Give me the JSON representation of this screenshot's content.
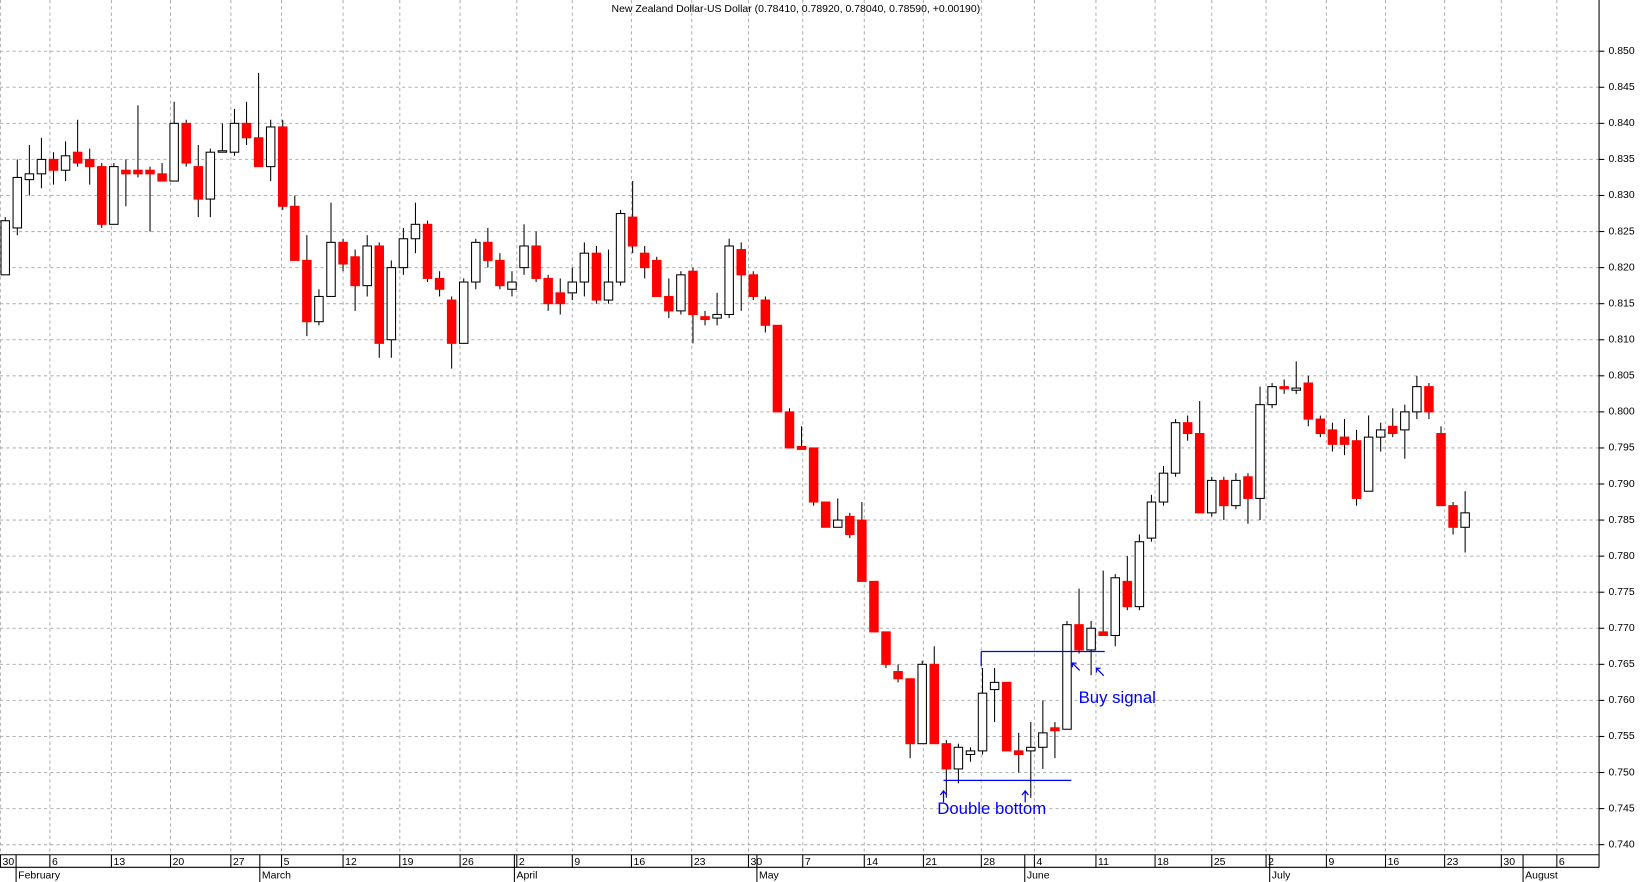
{
  "chart_data": {
    "type": "candlestick",
    "title": "New Zealand Dollar-US Dollar (0.78410, 0.78920, 0.78040, 0.78590, +0.00190)",
    "up_color": "#ffffff",
    "down_color": "#ff0000",
    "grid": true,
    "categories": [
      null,
      null,
      null,
      null,
      null,
      null,
      null,
      null,
      null,
      null,
      null,
      null,
      null,
      null,
      null,
      null,
      null,
      null,
      null,
      null,
      null,
      null,
      null,
      null,
      null,
      null,
      null,
      null,
      null,
      null,
      null,
      null,
      null,
      null,
      null,
      null,
      null,
      null,
      null,
      null,
      null,
      null,
      null,
      null,
      null,
      null,
      null,
      null,
      null,
      null,
      null,
      null,
      null,
      null,
      null,
      null,
      null,
      null,
      null,
      null,
      null,
      null,
      null,
      null,
      null,
      null,
      null,
      null,
      null,
      null,
      null,
      null,
      null,
      null,
      null,
      null,
      null,
      null,
      null,
      null,
      null,
      null,
      null,
      null,
      null,
      null,
      null,
      null,
      null,
      null,
      null,
      null,
      null,
      null,
      null,
      null,
      null,
      null,
      null,
      null,
      null,
      null,
      null,
      null,
      null,
      null,
      null,
      null,
      null,
      null,
      null,
      null,
      null,
      null,
      null,
      null,
      null,
      null,
      null,
      null,
      null,
      null
    ],
    "open": [
      0.819,
      0.8255,
      0.8322,
      0.833,
      0.835,
      0.8335,
      0.836,
      0.835,
      0.834,
      0.826,
      0.8335,
      0.8335,
      0.8335,
      0.833,
      0.832,
      0.84,
      0.834,
      0.8295,
      0.836,
      0.836,
      0.84,
      0.838,
      0.834,
      0.8395,
      0.8285,
      0.821,
      0.8125,
      0.816,
      0.8235,
      0.8215,
      0.8175,
      0.823,
      0.81,
      0.82,
      0.824,
      0.826,
      0.8185,
      0.8155,
      0.8095,
      0.818,
      0.8235,
      0.821,
      0.817,
      0.82,
      0.823,
      0.8185,
      0.8165,
      0.8165,
      0.818,
      0.822,
      0.8155,
      0.818,
      0.827,
      0.822,
      0.821,
      0.816,
      0.814,
      0.8195,
      0.8132,
      0.813,
      0.8135,
      0.8225,
      0.819,
      0.8155,
      0.812,
      0.8,
      0.7952,
      0.795,
      0.7875,
      0.784,
      0.7855,
      0.785,
      0.7765,
      0.7695,
      0.764,
      0.763,
      0.754,
      0.765,
      0.754,
      0.7505,
      0.7525,
      0.753,
      0.7615,
      0.7625,
      0.753,
      0.753,
      0.7535,
      0.7562,
      0.756,
      0.7705,
      0.767,
      0.7695,
      0.769,
      0.7765,
      0.773,
      0.7825,
      0.7875,
      0.7915,
      0.7985,
      0.797,
      0.786,
      0.7905,
      0.787,
      0.791,
      0.788,
      0.801,
      0.8035,
      0.803,
      0.804,
      0.799,
      0.7975,
      0.7965,
      0.796,
      0.789,
      0.7965,
      0.798,
      0.7975,
      0.8,
      0.8035,
      0.797,
      0.787,
      0.784
    ],
    "high": [
      0.827,
      0.835,
      0.837,
      0.838,
      0.836,
      0.8375,
      0.8405,
      0.8365,
      0.8345,
      0.8345,
      0.835,
      0.8425,
      0.834,
      0.8345,
      0.843,
      0.8405,
      0.837,
      0.8365,
      0.84,
      0.842,
      0.843,
      0.847,
      0.8405,
      0.8405,
      0.83,
      0.8245,
      0.817,
      0.829,
      0.824,
      0.8225,
      0.8245,
      0.8235,
      0.821,
      0.8255,
      0.829,
      0.8265,
      0.8195,
      0.816,
      0.8185,
      0.824,
      0.8255,
      0.822,
      0.8195,
      0.826,
      0.825,
      0.819,
      0.8185,
      0.82,
      0.8235,
      0.823,
      0.8225,
      0.828,
      0.832,
      0.823,
      0.8215,
      0.8185,
      0.8195,
      0.82,
      0.814,
      0.8165,
      0.824,
      0.8235,
      0.8195,
      0.816,
      0.812,
      0.8005,
      0.798,
      0.795,
      0.7875,
      0.788,
      0.786,
      0.7875,
      0.7765,
      0.7695,
      0.765,
      0.763,
      0.7655,
      0.7675,
      0.7545,
      0.754,
      0.7535,
      0.7645,
      0.7645,
      0.7625,
      0.7555,
      0.757,
      0.76,
      0.757,
      0.771,
      0.7755,
      0.771,
      0.778,
      0.7775,
      0.78,
      0.783,
      0.7885,
      0.7925,
      0.799,
      0.7995,
      0.8015,
      0.791,
      0.791,
      0.7915,
      0.7915,
      0.8035,
      0.804,
      0.8045,
      0.807,
      0.805,
      0.7995,
      0.7985,
      0.799,
      0.7975,
      0.7995,
      0.7985,
      0.8005,
      0.801,
      0.805,
      0.804,
      0.798,
      0.7875,
      0.789
    ],
    "low": [
      0.819,
      0.8245,
      0.83,
      0.831,
      0.8315,
      0.832,
      0.834,
      0.8315,
      0.8255,
      0.826,
      0.8285,
      0.8325,
      0.825,
      0.832,
      0.832,
      0.834,
      0.827,
      0.827,
      0.836,
      0.8355,
      0.837,
      0.834,
      0.832,
      0.828,
      0.821,
      0.8105,
      0.812,
      0.816,
      0.8195,
      0.814,
      0.816,
      0.8075,
      0.8075,
      0.819,
      0.822,
      0.818,
      0.816,
      0.806,
      0.8095,
      0.817,
      0.82,
      0.817,
      0.816,
      0.819,
      0.818,
      0.814,
      0.8135,
      0.8155,
      0.816,
      0.815,
      0.815,
      0.8175,
      0.822,
      0.8185,
      0.816,
      0.813,
      0.8135,
      0.8095,
      0.812,
      0.812,
      0.813,
      0.814,
      0.8155,
      0.811,
      0.8,
      0.795,
      0.7948,
      0.787,
      0.784,
      0.784,
      0.7825,
      0.7765,
      0.7695,
      0.7645,
      0.7625,
      0.752,
      0.754,
      0.754,
      0.7465,
      0.7485,
      0.7515,
      0.7525,
      0.757,
      0.753,
      0.75,
      0.7465,
      0.7505,
      0.752,
      0.756,
      0.7665,
      0.7635,
      0.769,
      0.7675,
      0.7725,
      0.7725,
      0.782,
      0.787,
      0.791,
      0.796,
      0.786,
      0.7855,
      0.785,
      0.7865,
      0.7845,
      0.785,
      0.8005,
      0.8025,
      0.8025,
      0.798,
      0.7965,
      0.7945,
      0.794,
      0.787,
      0.789,
      0.7945,
      0.7965,
      0.7935,
      0.799,
      0.799,
      0.787,
      0.783,
      0.7805
    ],
    "close": [
      0.8265,
      0.8325,
      0.833,
      0.835,
      0.8335,
      0.8355,
      0.8345,
      0.834,
      0.826,
      0.834,
      0.833,
      0.833,
      0.833,
      0.832,
      0.84,
      0.8345,
      0.8295,
      0.836,
      0.8362,
      0.84,
      0.838,
      0.834,
      0.8395,
      0.8285,
      0.821,
      0.8125,
      0.816,
      0.8235,
      0.8205,
      0.8175,
      0.823,
      0.8095,
      0.82,
      0.824,
      0.826,
      0.8185,
      0.817,
      0.8095,
      0.818,
      0.8235,
      0.821,
      0.8175,
      0.818,
      0.823,
      0.8185,
      0.815,
      0.815,
      0.818,
      0.822,
      0.8155,
      0.818,
      0.8275,
      0.823,
      0.82,
      0.816,
      0.814,
      0.819,
      0.8135,
      0.8128,
      0.8135,
      0.823,
      0.819,
      0.816,
      0.812,
      0.8,
      0.795,
      0.7948,
      0.7875,
      0.784,
      0.785,
      0.783,
      0.7765,
      0.7695,
      0.765,
      0.763,
      0.754,
      0.765,
      0.754,
      0.7505,
      0.7535,
      0.753,
      0.761,
      0.7625,
      0.753,
      0.7525,
      0.7535,
      0.7555,
      0.7558,
      0.7705,
      0.767,
      0.77,
      0.769,
      0.777,
      0.773,
      0.782,
      0.7875,
      0.7915,
      0.7985,
      0.797,
      0.786,
      0.7905,
      0.787,
      0.7905,
      0.788,
      0.801,
      0.8035,
      0.8032,
      0.8033,
      0.799,
      0.797,
      0.7955,
      0.7955,
      0.788,
      0.7965,
      0.7975,
      0.797,
      0.8,
      0.8035,
      0.8,
      0.787,
      0.784,
      0.786
    ],
    "xlim": [
      -0.434,
      132.1
    ],
    "ylim": [
      0.7386,
      0.8571
    ],
    "yticks": [
      {
        "value": 0.74,
        "label": "0.740"
      },
      0.745,
      {
        "value": 0.75,
        "label": "0.750"
      },
      0.755,
      {
        "value": 0.76,
        "label": "0.760"
      },
      0.765,
      {
        "value": 0.77,
        "label": "0.770"
      },
      0.775,
      {
        "value": 0.78,
        "label": "0.780"
      },
      0.785,
      {
        "value": 0.79,
        "label": "0.790"
      },
      0.795,
      {
        "value": 0.8,
        "label": "0.800"
      },
      0.805,
      {
        "value": 0.81,
        "label": "0.810"
      },
      0.815,
      {
        "value": 0.82,
        "label": "0.820"
      },
      0.825,
      {
        "value": 0.83,
        "label": "0.830"
      },
      0.835,
      {
        "value": 0.84,
        "label": "0.840"
      },
      0.845,
      {
        "value": 0.85,
        "label": "0.850"
      }
    ],
    "xticks": [
      {
        "value": -0.4,
        "label": "30"
      },
      {
        "value": 3.7,
        "label": "6"
      },
      {
        "value": 8.8,
        "label": "13"
      },
      {
        "value": 13.7,
        "label": "20"
      },
      {
        "value": 18.7,
        "label": "27"
      },
      {
        "value": 22.9,
        "label": "5"
      },
      {
        "value": 28.0,
        "label": "12"
      },
      {
        "value": 32.7,
        "label": "19"
      },
      {
        "value": 37.7,
        "label": "26"
      },
      {
        "value": 42.4,
        "label": "2"
      },
      {
        "value": 47.0,
        "label": "9"
      },
      {
        "value": 51.9,
        "label": "16"
      },
      {
        "value": 56.9,
        "label": "23"
      },
      {
        "value": 61.6,
        "label": "30"
      },
      {
        "value": 66.1,
        "label": "7"
      },
      {
        "value": 71.2,
        "label": "14"
      },
      {
        "value": 76.1,
        "label": "21"
      },
      {
        "value": 80.9,
        "label": "28"
      },
      {
        "value": 85.3,
        "label": "4"
      },
      {
        "value": 90.4,
        "label": "11"
      },
      {
        "value": 95.3,
        "label": "18"
      },
      {
        "value": 100.0,
        "label": "25"
      },
      {
        "value": 104.5,
        "label": "2"
      },
      {
        "value": 109.5,
        "label": "9"
      },
      {
        "value": 114.4,
        "label": "16"
      },
      {
        "value": 119.3,
        "label": "23"
      },
      {
        "value": 124.0,
        "label": "30"
      },
      {
        "value": 128.6,
        "label": "6"
      }
    ],
    "month_ticks": [
      {
        "value": 0.9,
        "label": "February"
      },
      {
        "value": 21.1,
        "label": "March"
      },
      {
        "value": 42.2,
        "label": "April"
      },
      {
        "value": 62.3,
        "label": "May"
      },
      {
        "value": 84.5,
        "label": "June"
      },
      {
        "value": 104.8,
        "label": "July"
      },
      {
        "value": 125.8,
        "label": "August"
      }
    ],
    "annotations": [
      "Buy signal",
      "Double bottom"
    ]
  }
}
